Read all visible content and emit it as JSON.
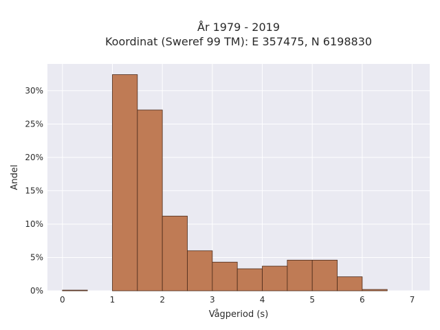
{
  "chart_data": {
    "type": "bar",
    "title_lines": [
      "År 1979 - 2019",
      "Koordinat (Sweref 99 TM): E 357475, N 6198830"
    ],
    "xlabel": "Vågperiod (s)",
    "ylabel": "Andel",
    "xlim": [
      -0.3,
      7.35
    ],
    "ylim": [
      0,
      34
    ],
    "x_ticks": [
      0,
      1,
      2,
      3,
      4,
      5,
      6,
      7
    ],
    "y_ticks": [
      0,
      5,
      10,
      15,
      20,
      25,
      30
    ],
    "y_tick_labels": [
      "0%",
      "5%",
      "10%",
      "15%",
      "20%",
      "25%",
      "30%"
    ],
    "bin_width": 0.5,
    "bins": [
      {
        "x0": 0.0,
        "value": 0.1
      },
      {
        "x0": 1.0,
        "value": 32.4
      },
      {
        "x0": 1.5,
        "value": 27.1
      },
      {
        "x0": 2.0,
        "value": 11.2
      },
      {
        "x0": 2.5,
        "value": 6.0
      },
      {
        "x0": 3.0,
        "value": 4.3
      },
      {
        "x0": 3.5,
        "value": 3.3
      },
      {
        "x0": 4.0,
        "value": 3.7
      },
      {
        "x0": 4.5,
        "value": 4.6
      },
      {
        "x0": 5.0,
        "value": 4.6
      },
      {
        "x0": 5.5,
        "value": 2.1
      },
      {
        "x0": 6.0,
        "value": 0.2
      }
    ],
    "grid": true,
    "colors": {
      "bar": "#bf7b55",
      "bar_edge": "#4a2a1a",
      "plot_bg": "#eaeaf2",
      "grid": "#ffffff"
    }
  }
}
